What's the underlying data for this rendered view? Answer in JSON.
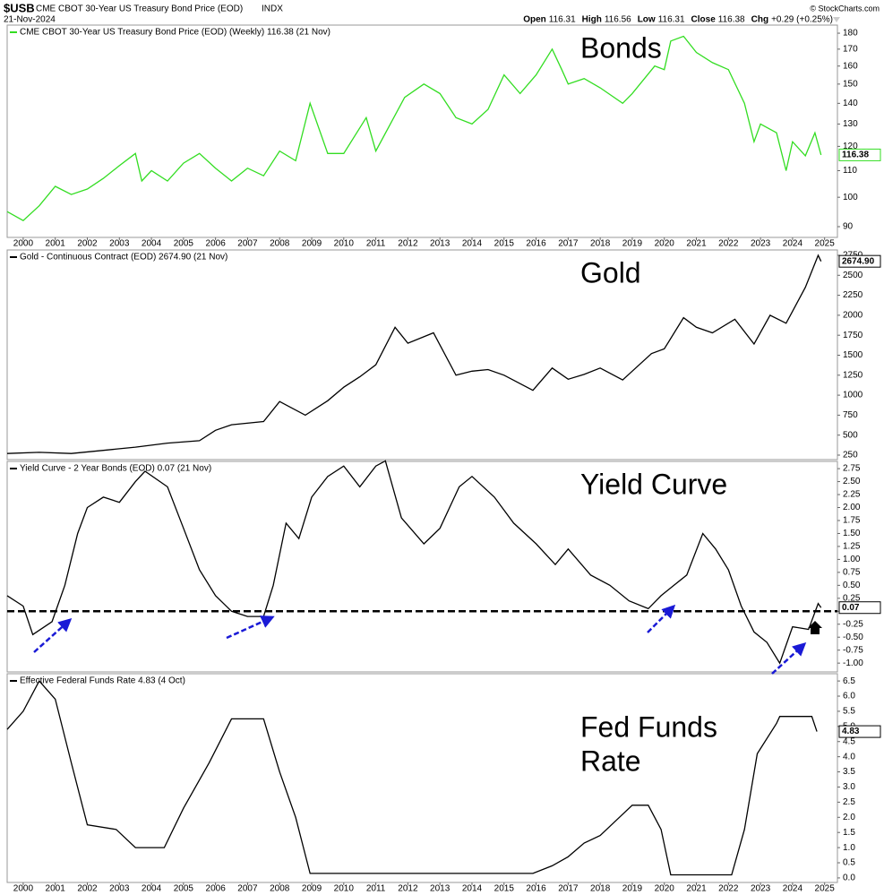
{
  "header": {
    "symbol": "$USB",
    "title": "CME CBOT 30-Year US Treasury Bond Price (EOD)",
    "exchange": "INDX",
    "date": "21-Nov-2024",
    "copyright": "© StockCharts.com",
    "quote": [
      {
        "label": "Open",
        "value": 116.31
      },
      {
        "label": "High",
        "value": 116.56
      },
      {
        "label": "Low",
        "value": 116.31
      },
      {
        "label": "Close",
        "value": 116.38
      },
      {
        "label": "Chg",
        "value": "+0.29 (+0.25%)"
      }
    ]
  },
  "chart_data": [
    {
      "type": "line",
      "annotation": [
        "Bonds"
      ],
      "log_scale": true,
      "xlim": [
        1999.5,
        2025.4
      ],
      "ylim": [
        86.6,
        185.3
      ],
      "xticks": [
        2000,
        2001,
        2002,
        2003,
        2004,
        2005,
        2006,
        2007,
        2008,
        2009,
        2010,
        2011,
        2012,
        2013,
        2014,
        2015,
        2016,
        2017,
        2018,
        2019,
        2020,
        2021,
        2022,
        2023,
        2024,
        2025
      ],
      "yticks": [
        180,
        170,
        160,
        150,
        140,
        130,
        120,
        110,
        100,
        90
      ],
      "current": 116.38,
      "x": [
        1999.5,
        2000.0,
        2000.5,
        2001.0,
        2001.5,
        2002.0,
        2002.5,
        2003.0,
        2003.5,
        2003.7,
        2004.0,
        2004.5,
        2005.0,
        2005.5,
        2006.0,
        2006.5,
        2007.0,
        2007.5,
        2008.0,
        2008.5,
        2008.95,
        2009.5,
        2010.0,
        2010.7,
        2011.0,
        2011.9,
        2012.5,
        2013.0,
        2013.5,
        2014.0,
        2014.5,
        2015.0,
        2015.5,
        2016.0,
        2016.5,
        2016.8,
        2017.0,
        2017.5,
        2018.0,
        2018.7,
        2019.0,
        2019.7,
        2020.0,
        2020.2,
        2020.6,
        2021.0,
        2021.5,
        2022.0,
        2022.5,
        2022.8,
        2023.0,
        2023.5,
        2023.8,
        2024.0,
        2024.4,
        2024.7,
        2024.89
      ],
      "series": [
        {
          "name": "CME CBOT 30-Year US Treasury Bond Price (EOD) (Weekly) 116.38 (21 Nov)",
          "color": "#33dd22",
          "values": [
            95,
            92,
            97,
            104,
            101,
            103,
            107,
            112,
            117,
            106,
            110,
            106,
            113,
            117,
            111,
            106,
            111,
            108,
            118,
            114,
            140,
            117,
            117,
            133,
            118,
            143,
            150,
            145,
            133,
            130,
            137,
            155,
            145,
            155,
            170,
            158,
            150,
            153,
            148,
            140,
            145,
            160,
            158,
            175,
            178,
            168,
            162,
            158,
            140,
            122,
            130,
            126,
            110,
            122,
            116,
            126,
            116.38
          ]
        }
      ]
    },
    {
      "type": "line",
      "annotation": [
        "Gold"
      ],
      "xlim": [
        1999.5,
        2025.4
      ],
      "ylim": [
        194,
        2817
      ],
      "yticks": [
        2750,
        2500,
        2250,
        2000,
        1750,
        1500,
        1250,
        1000,
        750,
        500,
        250
      ],
      "current": {
        "value": 2674.9,
        "label": "2674.90"
      },
      "x": [
        1999.5,
        2000.5,
        2001.5,
        2002.5,
        2003.5,
        2004.5,
        2005.5,
        2006.0,
        2006.5,
        2007.5,
        2008.0,
        2008.8,
        2009.5,
        2010.0,
        2010.5,
        2011.0,
        2011.6,
        2012.0,
        2012.8,
        2013.5,
        2014.0,
        2014.5,
        2015.0,
        2015.9,
        2016.5,
        2017.0,
        2017.5,
        2018.0,
        2018.7,
        2019.0,
        2019.6,
        2020.0,
        2020.6,
        2021.0,
        2021.5,
        2022.2,
        2022.8,
        2023.3,
        2023.8,
        2024.0,
        2024.4,
        2024.8,
        2024.89
      ],
      "series": [
        {
          "name": "Gold - Continuous Contract (EOD) 2674.90 (21 Nov)",
          "color": "#000000",
          "values": [
            270,
            285,
            270,
            310,
            350,
            400,
            430,
            560,
            630,
            670,
            920,
            750,
            930,
            1100,
            1230,
            1380,
            1850,
            1650,
            1780,
            1250,
            1300,
            1320,
            1250,
            1060,
            1340,
            1200,
            1260,
            1340,
            1190,
            1300,
            1520,
            1580,
            1970,
            1850,
            1780,
            1950,
            1640,
            2000,
            1900,
            2050,
            2350,
            2750,
            2674.9
          ]
        }
      ]
    },
    {
      "type": "line",
      "annotation": [
        "Yield Curve"
      ],
      "xlim": [
        1999.5,
        2025.4
      ],
      "ylim": [
        -1.17,
        2.89
      ],
      "hline": 0,
      "yticks": [
        2.75,
        {
          "value": 2.5,
          "label": "2.50"
        },
        2.25,
        {
          "value": 2,
          "label": "2.00"
        },
        1.75,
        {
          "value": 1.5,
          "label": "1.50"
        },
        1.25,
        {
          "value": 1,
          "label": "1.00"
        },
        0.75,
        {
          "value": 0.5,
          "label": "0.50"
        },
        0.25,
        {
          "value": 0,
          "label": "0.00"
        },
        -0.25,
        {
          "value": -0.5,
          "label": "-0.50"
        },
        -0.75,
        {
          "value": -1,
          "label": "-1.00"
        }
      ],
      "current": 0.07,
      "x": [
        1999.5,
        2000.0,
        2000.3,
        2000.9,
        2001.3,
        2001.7,
        2002.0,
        2002.5,
        2003.0,
        2003.5,
        2003.8,
        2004.5,
        2005.0,
        2005.5,
        2006.0,
        2006.5,
        2007.0,
        2007.5,
        2007.8,
        2008.2,
        2008.6,
        2009.0,
        2009.5,
        2010.0,
        2010.5,
        2011.0,
        2011.3,
        2011.8,
        2012.5,
        2013.0,
        2013.6,
        2014.0,
        2014.7,
        2015.3,
        2016.0,
        2016.6,
        2017.0,
        2017.7,
        2018.3,
        2018.9,
        2019.5,
        2019.9,
        2020.3,
        2020.7,
        2021.2,
        2021.6,
        2022.0,
        2022.4,
        2022.8,
        2023.2,
        2023.6,
        2024.0,
        2024.5,
        2024.8,
        2024.89
      ],
      "series": [
        {
          "name": "Yield Curve - 2 Year Bonds (EOD) 0.07 (21 Nov)",
          "color": "#000000",
          "values": [
            0.3,
            0.1,
            -0.45,
            -0.2,
            0.5,
            1.5,
            2.0,
            2.2,
            2.1,
            2.5,
            2.7,
            2.4,
            1.6,
            0.8,
            0.3,
            0.0,
            -0.1,
            -0.1,
            0.5,
            1.7,
            1.4,
            2.2,
            2.6,
            2.8,
            2.4,
            2.8,
            2.9,
            1.8,
            1.3,
            1.6,
            2.4,
            2.6,
            2.2,
            1.7,
            1.3,
            0.9,
            1.2,
            0.7,
            0.5,
            0.2,
            0.05,
            0.3,
            0.5,
            0.7,
            1.5,
            1.2,
            0.8,
            0.1,
            -0.4,
            -0.6,
            -1.0,
            -0.3,
            -0.35,
            0.15,
            0.07
          ]
        }
      ]
    },
    {
      "type": "line",
      "annotation": [
        "Fed Funds",
        "Rate"
      ],
      "xlim": [
        1999.5,
        2025.4
      ],
      "ylim": [
        -0.15,
        6.74
      ],
      "xticks": [
        2000,
        2001,
        2002,
        2003,
        2004,
        2005,
        2006,
        2007,
        2008,
        2009,
        2010,
        2011,
        2012,
        2013,
        2014,
        2015,
        2016,
        2017,
        2018,
        2019,
        2020,
        2021,
        2022,
        2023,
        2024,
        2025
      ],
      "yticks": [
        6.5,
        {
          "value": 6,
          "label": "6.0"
        },
        5.5,
        {
          "value": 5,
          "label": "5.0"
        },
        4.5,
        {
          "value": 4,
          "label": "4.0"
        },
        3.5,
        {
          "value": 3,
          "label": "3.0"
        },
        2.5,
        {
          "value": 2,
          "label": "2.0"
        },
        1.5,
        {
          "value": 1,
          "label": "1.0"
        },
        0.5,
        {
          "value": 0,
          "label": "0.0"
        }
      ],
      "current": 4.83,
      "x": [
        1999.5,
        2000.0,
        2000.5,
        2001.0,
        2001.5,
        2002.0,
        2002.9,
        2003.5,
        2004.4,
        2005.0,
        2005.8,
        2006.5,
        2007.5,
        2008.0,
        2008.5,
        2008.95,
        2015.9,
        2016.5,
        2017.0,
        2017.5,
        2018.0,
        2018.5,
        2019.0,
        2019.5,
        2019.9,
        2020.2,
        2022.1,
        2022.5,
        2022.9,
        2023.5,
        2023.6,
        2024.6,
        2024.76
      ],
      "series": [
        {
          "name": "Effective Federal Funds Rate 4.83 (4 Oct)",
          "color": "#000000",
          "values": [
            4.9,
            5.5,
            6.5,
            5.9,
            3.8,
            1.75,
            1.6,
            1.0,
            1.0,
            2.3,
            3.8,
            5.25,
            5.25,
            3.5,
            2.0,
            0.15,
            0.15,
            0.4,
            0.7,
            1.15,
            1.4,
            1.9,
            2.4,
            2.4,
            1.6,
            0.1,
            0.1,
            1.6,
            4.1,
            5.1,
            5.33,
            5.33,
            4.83
          ]
        }
      ]
    }
  ]
}
